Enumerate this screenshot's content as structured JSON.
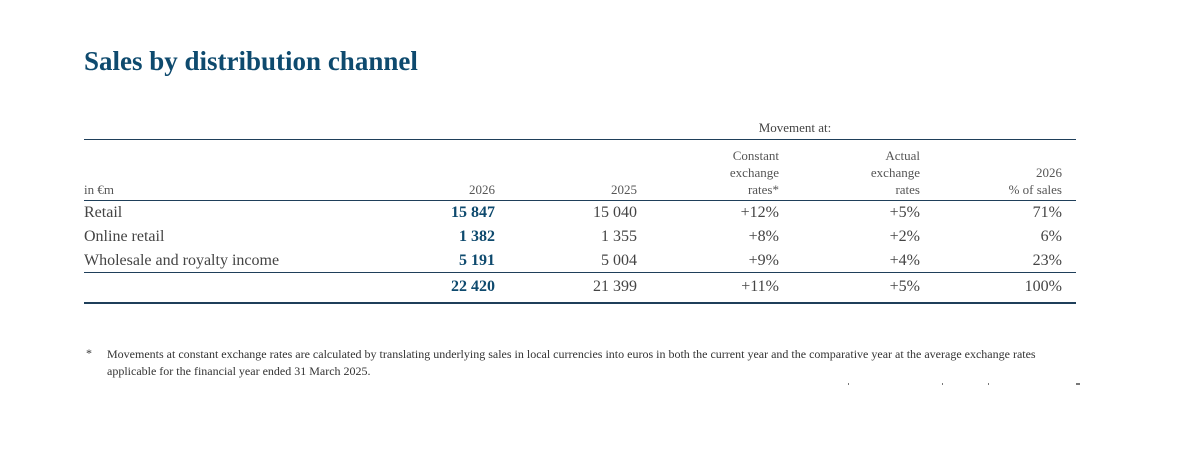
{
  "title": "Sales by distribution channel",
  "movement_header": "Movement at:",
  "columns": {
    "unit": "in €m",
    "year_current": "2026",
    "year_prior": "2025",
    "constant_line1": "Constant",
    "constant_line2": "exchange",
    "constant_line3": "rates*",
    "actual_line1": "Actual",
    "actual_line2": "exchange",
    "actual_line3": "rates",
    "share_line1": "2026",
    "share_line2": "% of sales"
  },
  "rows": [
    {
      "label": "Retail",
      "current": "15 847",
      "prior": "15 040",
      "constant": "+12%",
      "actual": "+5%",
      "share": "71%"
    },
    {
      "label": "Online retail",
      "current": "1 382",
      "prior": "1 355",
      "constant": "+8%",
      "actual": "+2%",
      "share": "6%"
    },
    {
      "label": "Wholesale and royalty income",
      "current": "5 191",
      "prior": "5 004",
      "constant": "+9%",
      "actual": "+4%",
      "share": "23%"
    }
  ],
  "total": {
    "current": "22 420",
    "prior": "21 399",
    "constant": "+11%",
    "actual": "+5%",
    "share": "100%"
  },
  "footnote": {
    "marker": "*",
    "text": "Movements at constant exchange rates are calculated by translating underlying sales in local currencies into euros in both the current year and the comparative year at the average exchange rates applicable for the financial year ended 31 March 2025."
  }
}
